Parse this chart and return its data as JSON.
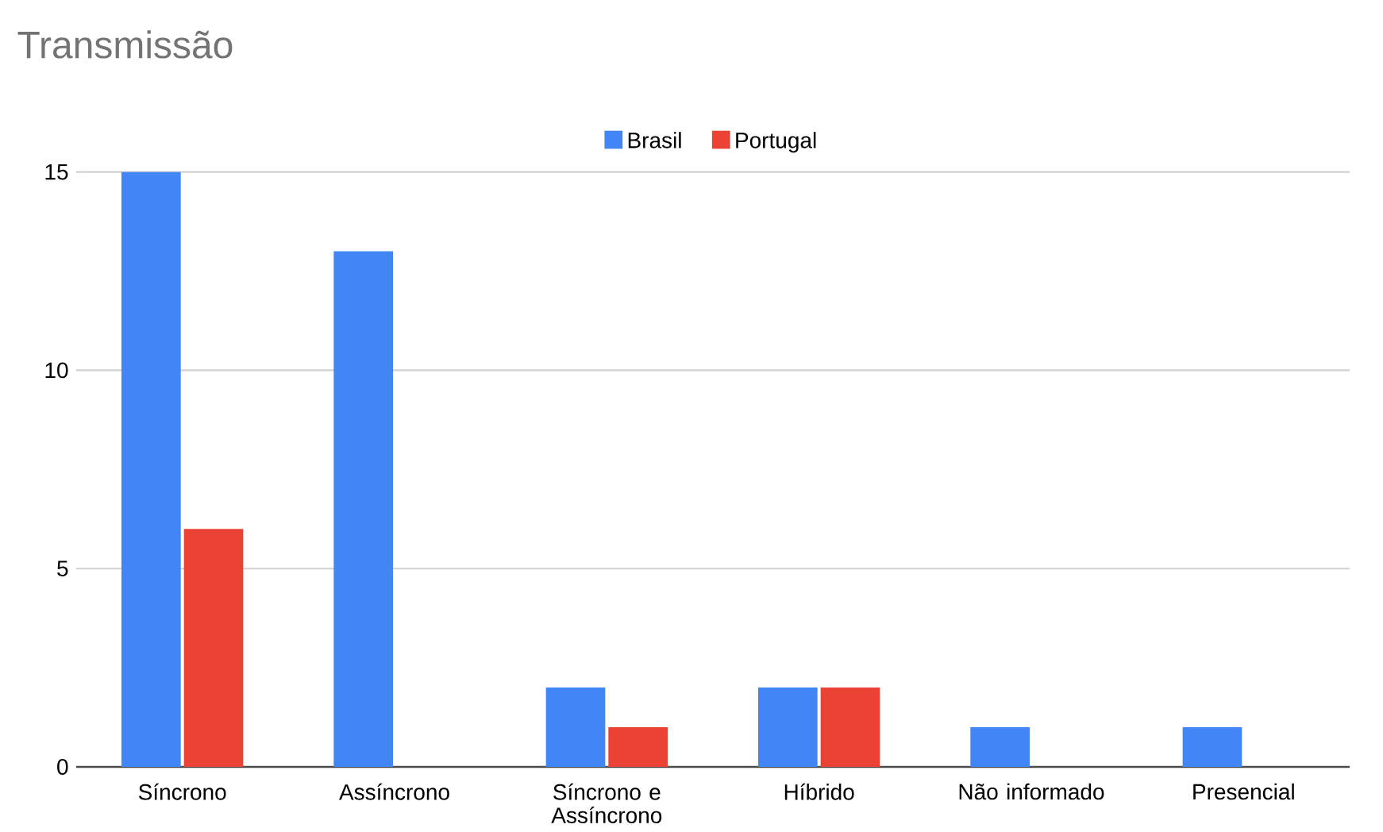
{
  "chart_data": {
    "type": "bar",
    "title": "Transmissão",
    "categories": [
      "Síncrono",
      "Assíncrono",
      "Síncrono e Assíncrono",
      "Híbrido",
      "Não informado",
      "Presencial"
    ],
    "series": [
      {
        "name": "Brasil",
        "color": "#4285f4",
        "values": [
          15,
          13,
          2,
          2,
          1,
          1
        ]
      },
      {
        "name": "Portugal",
        "color": "#ea4335",
        "values": [
          6,
          0,
          1,
          2,
          0,
          0
        ]
      }
    ],
    "ylim": [
      0,
      15
    ],
    "yticks": [
      0,
      5,
      10,
      15
    ],
    "grid": "y",
    "legend": "top"
  }
}
